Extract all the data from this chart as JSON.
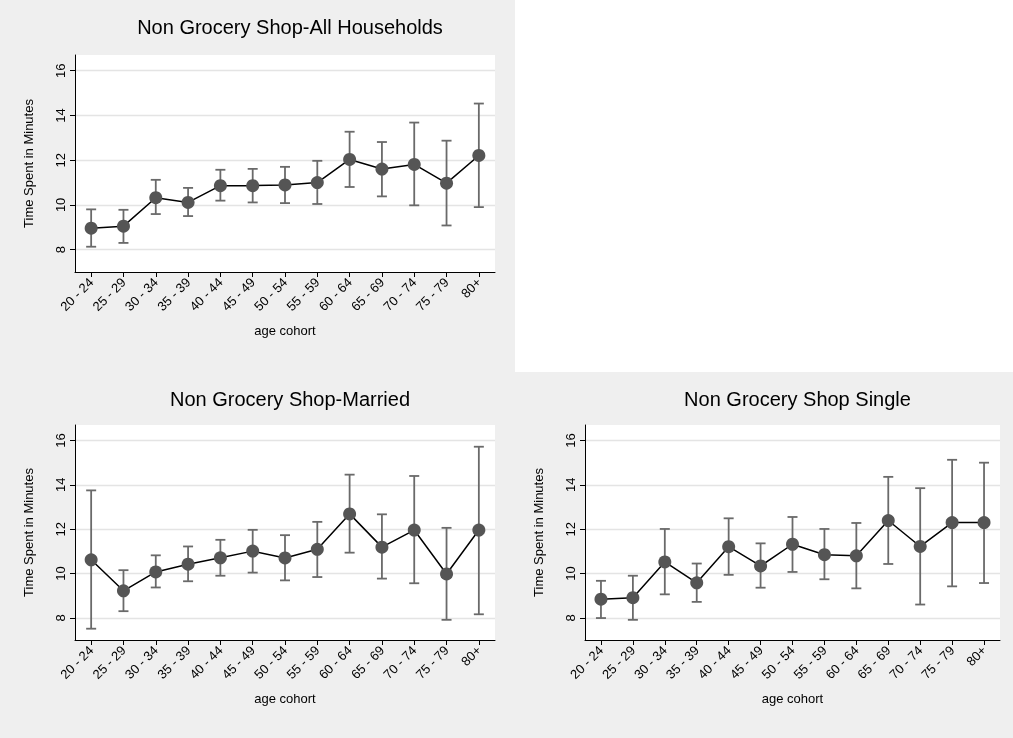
{
  "chart_data": [
    {
      "type": "line",
      "title": "Non Grocery Shop-All Households",
      "xlabel": "age cohort",
      "ylabel": "Time Spent in Minutes",
      "categories": [
        "20 - 24",
        "25 - 29",
        "30 - 34",
        "35 - 39",
        "40 - 44",
        "45 - 49",
        "50 - 54",
        "55 - 59",
        "60 - 64",
        "65 - 69",
        "70 - 74",
        "75 - 79",
        "80+"
      ],
      "series": [
        {
          "color": "#555555",
          "values": [
            8.96,
            9.05,
            10.32,
            10.11,
            10.86,
            10.86,
            10.89,
            11.0,
            12.03,
            11.6,
            11.81,
            10.97,
            12.21
          ],
          "errors": [
            [
              8.13,
              9.8
            ],
            [
              8.3,
              9.78
            ],
            [
              9.59,
              11.12
            ],
            [
              9.5,
              10.76
            ],
            [
              10.19,
              11.57
            ],
            [
              10.11,
              11.61
            ],
            [
              10.08,
              11.7
            ],
            [
              10.04,
              11.97
            ],
            [
              10.8,
              13.27
            ],
            [
              10.38,
              12.81
            ],
            [
              9.98,
              13.68
            ],
            [
              9.08,
              12.87
            ],
            [
              9.9,
              14.53
            ]
          ]
        }
      ],
      "ylim": [
        7,
        16.7
      ],
      "yticks": [
        8,
        10,
        12,
        14,
        16
      ],
      "grid": "y",
      "marker": "circle",
      "line_style": "solid"
    },
    {
      "type": "line",
      "title": "Non Grocery Shop-Married",
      "xlabel": "age cohort",
      "ylabel": "Time Spent in Minutes",
      "categories": [
        "20 - 24",
        "25 - 29",
        "30 - 34",
        "35 - 39",
        "40 - 44",
        "45 - 49",
        "50 - 54",
        "55 - 59",
        "60 - 64",
        "65 - 69",
        "70 - 74",
        "75 - 79",
        "80+"
      ],
      "series": [
        {
          "color": "#555555",
          "values": [
            10.62,
            9.22,
            10.07,
            10.42,
            10.71,
            11.01,
            10.7,
            11.09,
            12.69,
            11.19,
            11.96,
            9.98,
            11.96
          ],
          "errors": [
            [
              7.51,
              13.75
            ],
            [
              8.3,
              10.15
            ],
            [
              9.37,
              10.82
            ],
            [
              9.65,
              11.22
            ],
            [
              9.9,
              11.52
            ],
            [
              10.04,
              11.97
            ],
            [
              9.69,
              11.73
            ],
            [
              9.84,
              12.33
            ],
            [
              10.94,
              14.46
            ],
            [
              9.77,
              12.67
            ],
            [
              9.56,
              14.4
            ],
            [
              7.91,
              12.06
            ],
            [
              8.16,
              15.72
            ]
          ]
        }
      ],
      "ylim": [
        7,
        16.7
      ],
      "yticks": [
        8,
        10,
        12,
        14,
        16
      ],
      "grid": "y",
      "marker": "circle",
      "line_style": "solid"
    },
    {
      "type": "line",
      "title": "Non Grocery Shop Single",
      "xlabel": "age cohort",
      "ylabel": "Time Spent in Minutes",
      "categories": [
        "20 - 24",
        "25 - 29",
        "30 - 34",
        "35 - 39",
        "40 - 44",
        "45 - 49",
        "50 - 54",
        "55 - 59",
        "60 - 64",
        "65 - 69",
        "70 - 74",
        "75 - 79",
        "80+"
      ],
      "series": [
        {
          "color": "#555555",
          "values": [
            8.84,
            8.91,
            10.52,
            9.58,
            11.21,
            10.34,
            11.32,
            10.85,
            10.8,
            12.39,
            11.22,
            12.3,
            12.3
          ],
          "errors": [
            [
              7.99,
              9.67
            ],
            [
              7.91,
              9.9
            ],
            [
              9.06,
              12.01
            ],
            [
              8.72,
              10.45
            ],
            [
              9.94,
              12.49
            ],
            [
              9.36,
              11.36
            ],
            [
              10.07,
              12.55
            ],
            [
              9.74,
              12.01
            ],
            [
              9.33,
              12.28
            ],
            [
              10.43,
              14.36
            ],
            [
              8.6,
              13.85
            ],
            [
              9.42,
              15.13
            ],
            [
              9.57,
              15.0
            ]
          ]
        }
      ],
      "ylim": [
        7,
        16.7
      ],
      "yticks": [
        8,
        10,
        12,
        14,
        16
      ],
      "grid": "y",
      "marker": "circle",
      "line_style": "solid"
    }
  ]
}
